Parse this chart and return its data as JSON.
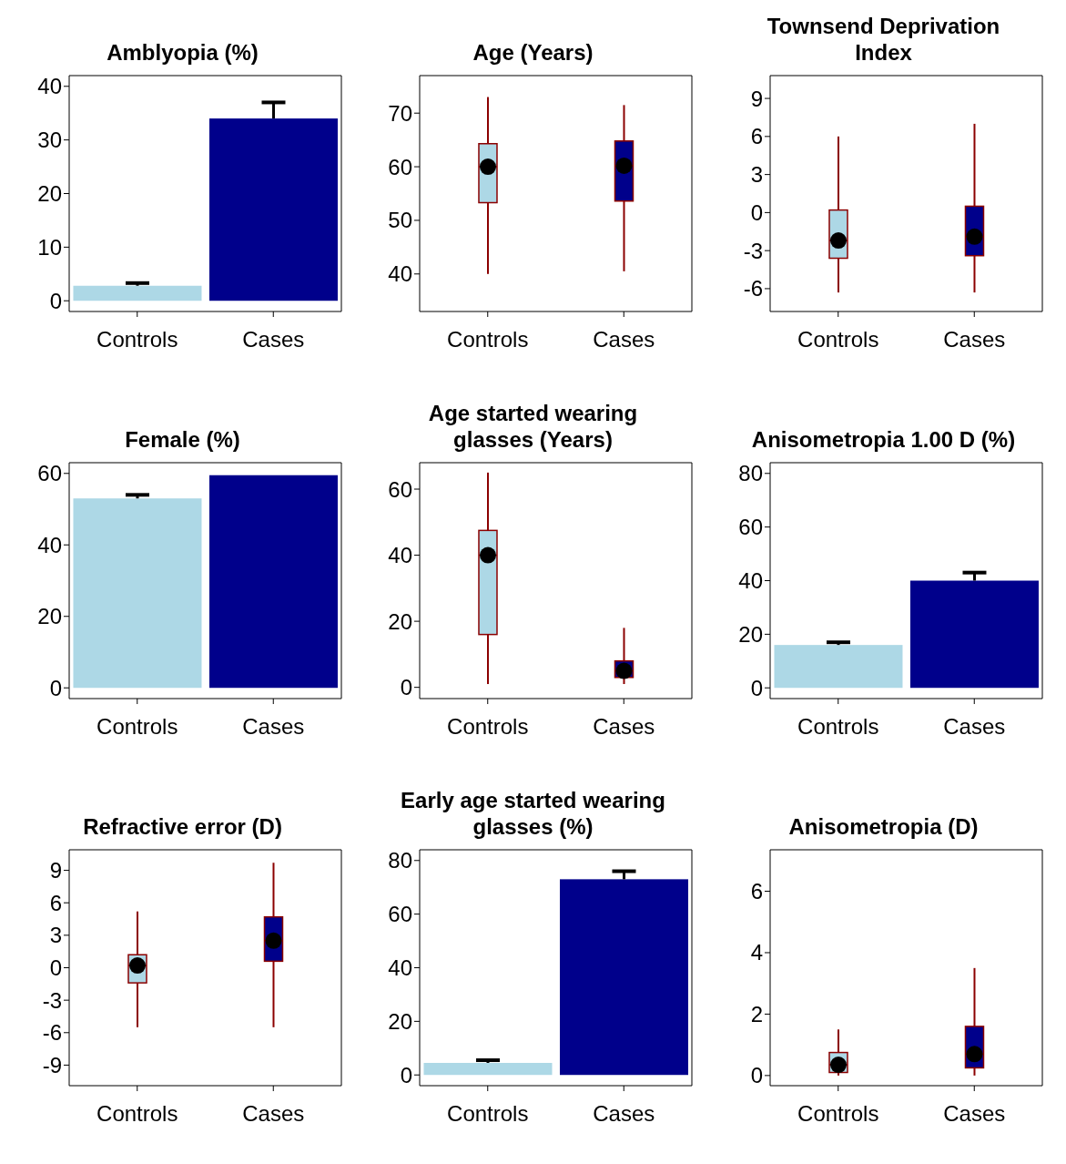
{
  "chart_data": [
    {
      "type": "bar",
      "title": "Amblyopia (%)",
      "categories": [
        "Controls",
        "Cases"
      ],
      "values": [
        2.8,
        34
      ],
      "colors": [
        "#add8e6",
        "#00008b"
      ],
      "errors": [
        [
          2.8,
          3.3
        ],
        [
          34,
          37
        ]
      ],
      "ylim": [
        -2,
        42
      ],
      "yticks": [
        0,
        10,
        20,
        30,
        40
      ]
    },
    {
      "type": "box",
      "title": "Age (Years)",
      "categories": [
        "Controls",
        "Cases"
      ],
      "colors": [
        "#add8e6",
        "#00008b"
      ],
      "boxes": [
        {
          "low": 40,
          "q1": 53.3,
          "median": 60,
          "q3": 64.3,
          "high": 73,
          "mean": 60
        },
        {
          "low": 40.5,
          "q1": 53.6,
          "median": 60.2,
          "q3": 64.8,
          "high": 71.5,
          "mean": 60.2
        }
      ],
      "ylim": [
        33,
        77
      ],
      "yticks": [
        40,
        50,
        60,
        70
      ]
    },
    {
      "type": "box",
      "title": "Townsend Deprivation Index",
      "categories": [
        "Controls",
        "Cases"
      ],
      "colors": [
        "#add8e6",
        "#00008b"
      ],
      "boxes": [
        {
          "low": -6.3,
          "q1": -3.6,
          "median": -2.2,
          "q3": 0.2,
          "high": 6,
          "mean": -2.2
        },
        {
          "low": -6.3,
          "q1": -3.4,
          "median": -1.9,
          "q3": 0.5,
          "high": 7,
          "mean": -1.9
        }
      ],
      "ylim": [
        -7.8,
        10.8
      ],
      "yticks": [
        -6,
        -3,
        0,
        3,
        6,
        9
      ]
    },
    {
      "type": "bar",
      "title": "Female (%)",
      "categories": [
        "Controls",
        "Cases"
      ],
      "values": [
        53,
        59.5
      ],
      "colors": [
        "#add8e6",
        "#00008b"
      ],
      "errors": [
        [
          53,
          54
        ],
        null
      ],
      "ylim": [
        -3,
        63
      ],
      "yticks": [
        0,
        20,
        40,
        60
      ]
    },
    {
      "type": "box",
      "title": "Age started wearing glasses (Years)",
      "categories": [
        "Controls",
        "Cases"
      ],
      "colors": [
        "#add8e6",
        "#00008b"
      ],
      "boxes": [
        {
          "low": 1,
          "q1": 16,
          "median": 40,
          "q3": 47.5,
          "high": 65,
          "mean": 40
        },
        {
          "low": 1,
          "q1": 3,
          "median": 5,
          "q3": 8,
          "high": 18,
          "mean": 5
        }
      ],
      "ylim": [
        -3.4,
        68
      ],
      "yticks": [
        0,
        20,
        40,
        60
      ]
    },
    {
      "type": "bar",
      "title": "Anisometropia 1.00 D (%)",
      "categories": [
        "Controls",
        "Cases"
      ],
      "values": [
        16,
        40
      ],
      "colors": [
        "#add8e6",
        "#00008b"
      ],
      "errors": [
        [
          16,
          17
        ],
        [
          40,
          43
        ]
      ],
      "ylim": [
        -4,
        84
      ],
      "yticks": [
        0,
        20,
        40,
        60,
        80
      ]
    },
    {
      "type": "box",
      "title": "Refractive error (D)",
      "categories": [
        "Controls",
        "Cases"
      ],
      "colors": [
        "#add8e6",
        "#00008b"
      ],
      "boxes": [
        {
          "low": -5.5,
          "q1": -1.4,
          "median": 0.2,
          "q3": 1.2,
          "high": 5.2,
          "mean": 0.2
        },
        {
          "low": -5.5,
          "q1": 0.6,
          "median": 2.5,
          "q3": 4.7,
          "high": 9.7,
          "mean": 2.5
        }
      ],
      "ylim": [
        -10.9,
        10.9
      ],
      "yticks": [
        -9,
        -6,
        -3,
        0,
        3,
        6,
        9
      ]
    },
    {
      "type": "bar",
      "title": "Early age started wearing glasses (%)",
      "categories": [
        "Controls",
        "Cases"
      ],
      "values": [
        4.5,
        73
      ],
      "colors": [
        "#add8e6",
        "#00008b"
      ],
      "errors": [
        [
          4.5,
          5.5
        ],
        [
          73,
          76
        ]
      ],
      "ylim": [
        -4,
        84
      ],
      "yticks": [
        0,
        20,
        40,
        60,
        80
      ]
    },
    {
      "type": "box",
      "title": "Anisometropia (D)",
      "categories": [
        "Controls",
        "Cases"
      ],
      "colors": [
        "#add8e6",
        "#00008b"
      ],
      "boxes": [
        {
          "low": 0,
          "q1": 0.1,
          "median": 0.35,
          "q3": 0.75,
          "high": 1.5,
          "mean": 0.35
        },
        {
          "low": 0,
          "q1": 0.25,
          "median": 0.7,
          "q3": 1.6,
          "high": 3.5,
          "mean": 0.7
        }
      ],
      "ylim": [
        -0.33,
        7.35
      ],
      "yticks": [
        0,
        2,
        4,
        6
      ]
    }
  ]
}
